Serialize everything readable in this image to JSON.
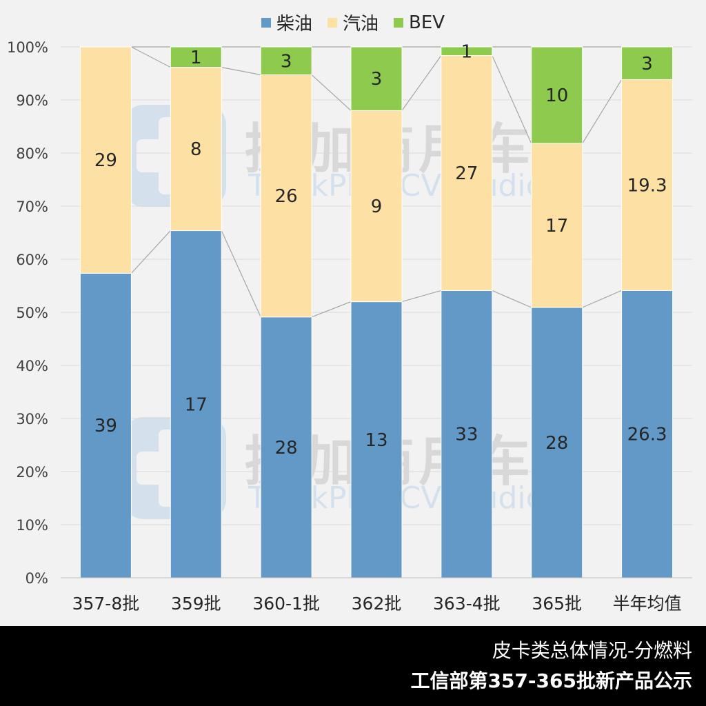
{
  "chart_data": {
    "type": "stacked-bar-100",
    "categories": [
      "357-8批",
      "359批",
      "360-1批",
      "362批",
      "363-4批",
      "365批",
      "半年均值"
    ],
    "series": [
      {
        "name": "柴油",
        "color": "#6399c6",
        "values": [
          39,
          17,
          28,
          13,
          33,
          28,
          26.3
        ]
      },
      {
        "name": "汽油",
        "color": "#fde0a4",
        "values": [
          29,
          8,
          26,
          9,
          27,
          17,
          19.3
        ]
      },
      {
        "name": "BEV",
        "color": "#8dca4e",
        "values": [
          null,
          1,
          3,
          3,
          1,
          10,
          3
        ]
      }
    ],
    "ylim": [
      0,
      100
    ],
    "yticks": [
      "0%",
      "10%",
      "20%",
      "30%",
      "40%",
      "50%",
      "60%",
      "70%",
      "80%",
      "90%",
      "100%"
    ],
    "series_lines": true,
    "legend_position": "top"
  },
  "watermark": {
    "cn": "提加商用车",
    "en": "TruckPlus CV studio"
  },
  "footer": {
    "line1": "皮卡类总体情况-分燃料",
    "line2": "工信部第357-365批新产品公示"
  }
}
